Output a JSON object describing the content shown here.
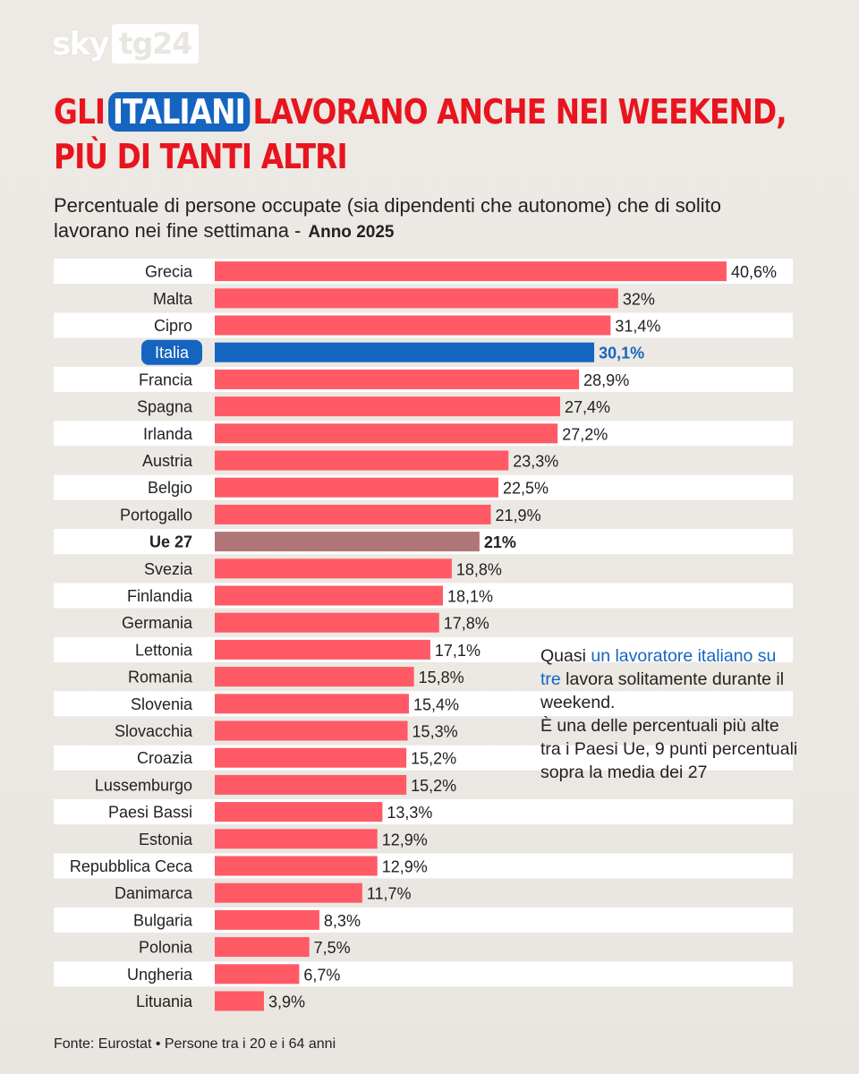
{
  "brand": {
    "sky": "sky",
    "tg": "tg24"
  },
  "header": {
    "title_pre": "GLI",
    "title_highlight": "ITALIANI",
    "title_post": "LAVORANO ANCHE NEI WEEKEND,",
    "title_line2": "PIÙ DI TANTI ALTRI",
    "subtitle": "Percentuale di persone occupate (sia dipendenti che autonome) che di solito lavorano nei fine settimana  -",
    "subtitle_year": "Anno 2025"
  },
  "callout": {
    "t1": "Quasi ",
    "t2": "un lavoratore italiano su tre",
    "t3": " lavora solitamente durante il weekend.",
    "t4": "È una delle percentuali più alte tra i Paesi Ue, 9 punti percentuali sopra la media dei 27"
  },
  "source": "Fonte: Eurostat • Persone tra i 20 e i 64 anni",
  "colors": {
    "bar": "#ff5a66",
    "highlight": "#1565c0",
    "average": "#b07577",
    "title": "#e8141e",
    "row_band": "#ffffff"
  },
  "chart_data": {
    "type": "bar",
    "orientation": "horizontal",
    "unit": "%",
    "xlim": [
      0,
      40.6
    ],
    "categories": [
      "Grecia",
      "Malta",
      "Cipro",
      "Italia",
      "Francia",
      "Spagna",
      "Irlanda",
      "Austria",
      "Belgio",
      "Portogallo",
      "Ue 27",
      "Svezia",
      "Finlandia",
      "Germania",
      "Lettonia",
      "Romania",
      "Slovenia",
      "Slovacchia",
      "Croazia",
      "Lussemburgo",
      "Paesi Bassi",
      "Estonia",
      "Repubblica Ceca",
      "Danimarca",
      "Bulgaria",
      "Polonia",
      "Ungheria",
      "Lituania"
    ],
    "values": [
      40.6,
      32,
      31.4,
      30.1,
      28.9,
      27.4,
      27.2,
      23.3,
      22.5,
      21.9,
      21,
      18.8,
      18.1,
      17.8,
      17.1,
      15.8,
      15.4,
      15.3,
      15.2,
      15.2,
      13.3,
      12.9,
      12.9,
      11.7,
      8.3,
      7.5,
      6.7,
      3.9
    ],
    "value_labels": [
      "40,6%",
      "32%",
      "31,4%",
      "30,1%",
      "28,9%",
      "27,4%",
      "27,2%",
      "23,3%",
      "22,5%",
      "21,9%",
      "21%",
      "18,8%",
      "18,1%",
      "17,8%",
      "17,1%",
      "15,8%",
      "15,4%",
      "15,3%",
      "15,2%",
      "15,2%",
      "13,3%",
      "12,9%",
      "12,9%",
      "11,7%",
      "8,3%",
      "7,5%",
      "6,7%",
      "3,9%"
    ],
    "highlight": "Italia",
    "average": "Ue 27"
  }
}
